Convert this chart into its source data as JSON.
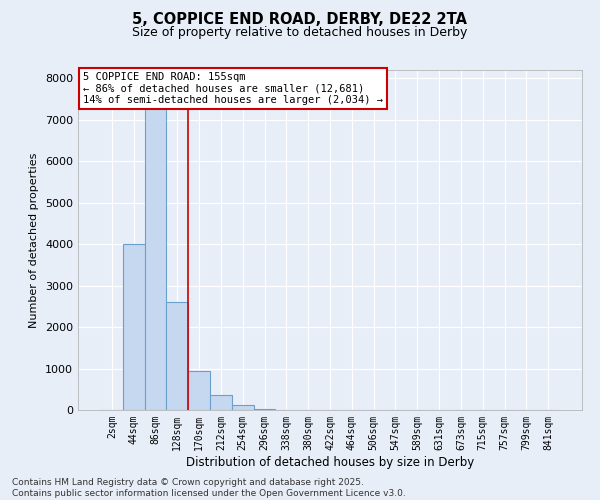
{
  "title_line1": "5, COPPICE END ROAD, DERBY, DE22 2TA",
  "title_line2": "Size of property relative to detached houses in Derby",
  "xlabel": "Distribution of detached houses by size in Derby",
  "ylabel": "Number of detached properties",
  "categories": [
    "2sqm",
    "44sqm",
    "86sqm",
    "128sqm",
    "170sqm",
    "212sqm",
    "254sqm",
    "296sqm",
    "338sqm",
    "380sqm",
    "422sqm",
    "464sqm",
    "506sqm",
    "547sqm",
    "589sqm",
    "631sqm",
    "673sqm",
    "715sqm",
    "757sqm",
    "799sqm",
    "841sqm"
  ],
  "values": [
    5,
    4000,
    7300,
    2600,
    950,
    350,
    120,
    30,
    5,
    0,
    0,
    0,
    0,
    0,
    0,
    0,
    0,
    0,
    0,
    0,
    0
  ],
  "bar_color": "#c5d8f0",
  "bar_edge_color": "#6aa0cc",
  "vline_color": "#cc0000",
  "vline_pos": 3.5,
  "annotation_box_text": "5 COPPICE END ROAD: 155sqm\n← 86% of detached houses are smaller (12,681)\n14% of semi-detached houses are larger (2,034) →",
  "annotation_box_color": "#cc0000",
  "ylim": [
    0,
    8200
  ],
  "yticks": [
    0,
    1000,
    2000,
    3000,
    4000,
    5000,
    6000,
    7000,
    8000
  ],
  "bg_color": "#e8eef8",
  "plot_bg_color": "#e8eef8",
  "grid_color": "#ffffff",
  "footer_line1": "Contains HM Land Registry data © Crown copyright and database right 2025.",
  "footer_line2": "Contains public sector information licensed under the Open Government Licence v3.0."
}
